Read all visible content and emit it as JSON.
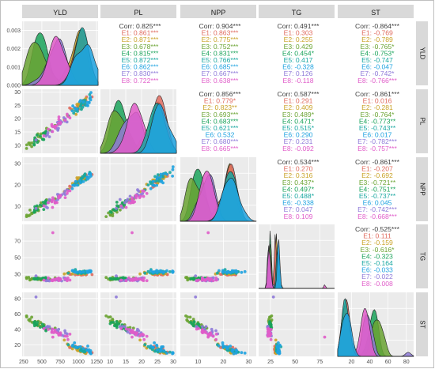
{
  "chart_data": {
    "type": "scatter",
    "variables": [
      "YLD",
      "PL",
      "NPP",
      "TG",
      "ST"
    ],
    "group_labels": [
      "E1",
      "E2",
      "E3",
      "E4",
      "E5",
      "E6",
      "E7",
      "E8"
    ],
    "group_colors": [
      "#e06b5f",
      "#c9a227",
      "#6aa332",
      "#1aa35a",
      "#18a7a0",
      "#1fa3e0",
      "#8e7ad8",
      "#e05cc9"
    ],
    "x_ticks": {
      "YLD": [
        "250",
        "500",
        "750",
        "1000",
        "1250"
      ],
      "PL": [
        "10",
        "15",
        "20",
        "25",
        "30"
      ],
      "NPP": [
        "10",
        "20",
        "30"
      ],
      "TG": [
        "25",
        "50",
        "75"
      ],
      "ST": [
        "20",
        "40",
        "60",
        "80"
      ]
    },
    "y_ticks": {
      "YLD": [
        "0.000",
        "0.001",
        "0.002",
        "0.003"
      ],
      "PL": [
        "10",
        "15",
        "20",
        "25",
        "30"
      ],
      "NPP": [
        "10",
        "20",
        "30"
      ],
      "TG": [
        "30",
        "50",
        "70"
      ],
      "ST": [
        "20",
        "40",
        "60",
        "80"
      ]
    },
    "correlations": [
      {
        "row": 0,
        "col": 1,
        "overall": "Corr: 0.825***",
        "groups": [
          "E1: 0.861***",
          "E2: 0.871***",
          "E3: 0.678***",
          "E4: 0.815***",
          "E5: 0.872***",
          "E6: 0.862***",
          "E7: 0.830***",
          "E8: 0.722***"
        ]
      },
      {
        "row": 0,
        "col": 2,
        "overall": "Corr: 0.904***",
        "groups": [
          "E1: 0.863***",
          "E2: 0.775***",
          "E3: 0.752***",
          "E4: 0.831***",
          "E5: 0.766***",
          "E6: 0.685***",
          "E7: 0.667***",
          "E8: 0.638***"
        ]
      },
      {
        "row": 0,
        "col": 3,
        "overall": "Corr: 0.491***",
        "groups": [
          "E1: 0.303",
          "E2: 0.255",
          "E3: 0.429",
          "E4: 0.454*",
          "E5: 0.417",
          "E6: -0.328",
          "E7: 0.126",
          "E8: -0.118"
        ]
      },
      {
        "row": 0,
        "col": 4,
        "overall": "Corr: -0.864***",
        "groups": [
          "E1: -0.769",
          "E2: -0.789",
          "E3: -0.765*",
          "E4: -0.753*",
          "E5: -0.747",
          "E6: -0.047",
          "E7: -0.742*",
          "E8: -0.766***"
        ]
      },
      {
        "row": 1,
        "col": 2,
        "overall": "Corr: 0.856***",
        "groups": [
          "E1: 0.779*",
          "E2: 0.823**",
          "E3: 0.693***",
          "E4: 0.683***",
          "E5: 0.621***",
          "E6: 0.532",
          "E7: 0.680***",
          "E8: 0.665***"
        ]
      },
      {
        "row": 1,
        "col": 3,
        "overall": "Corr: 0.587***",
        "groups": [
          "E1: 0.291",
          "E2: 0.409",
          "E3: 0.489*",
          "E4: 0.471*",
          "E5: 0.515*",
          "E6: 0.290",
          "E7: 0.231",
          "E8: -0.092"
        ]
      },
      {
        "row": 1,
        "col": 4,
        "overall": "Corr: -0.861***",
        "groups": [
          "E1: 0.016",
          "E2: -0.281",
          "E3: -0.764*",
          "E4: -0.773**",
          "E5: -0.743**",
          "E6: 0.017",
          "E7: -0.782***",
          "E8: -0.757***"
        ]
      },
      {
        "row": 2,
        "col": 3,
        "overall": "Corr: 0.534***",
        "groups": [
          "E1: 0.270",
          "E2: 0.316",
          "E3: 0.437*",
          "E4: 0.497*",
          "E5: 0.488*",
          "E6: -0.338",
          "E7: 0.047",
          "E8: 0.109"
        ]
      },
      {
        "row": 2,
        "col": 4,
        "overall": "Corr: -0.861***",
        "groups": [
          "E1: -0.207",
          "E2: -0.692",
          "E3: -0.721**",
          "E4: -0.751**",
          "E5: -0.737**",
          "E6: 0.045",
          "E7: -0.742***",
          "E8: -0.668***"
        ]
      },
      {
        "row": 3,
        "col": 4,
        "overall": "Corr: -0.525***",
        "groups": [
          "E1: 0.111",
          "E2: -0.159",
          "E3: -0.616*",
          "E4: -0.323",
          "E5: -0.164",
          "E6: -0.033",
          "E7: -0.022",
          "E8: -0.008"
        ]
      }
    ]
  }
}
